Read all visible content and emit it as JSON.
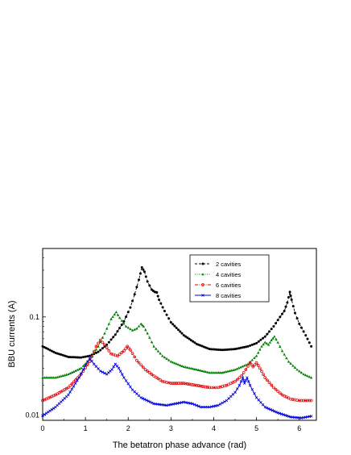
{
  "chart_data": {
    "type": "line",
    "title": "",
    "xlabel": "The betatron phase advance (rad)",
    "ylabel": "BBU currents (A)",
    "xlim": [
      0,
      6.4
    ],
    "ylim": [
      0.0088,
      0.5
    ],
    "yscale": "log",
    "x_ticks": [
      0,
      1,
      2,
      3,
      4,
      5,
      6
    ],
    "x_tick_labels": [
      "0",
      "1",
      "2",
      "3",
      "4",
      "5",
      "6"
    ],
    "y_ticks": [
      0.01,
      0.1
    ],
    "y_tick_labels": [
      "0.01",
      "0.1"
    ],
    "grid": false,
    "legend_position": "top-right",
    "series": [
      {
        "name": "2 cavities",
        "color": "#000000",
        "marker": "circle",
        "line_style": "dashed",
        "points": [
          [
            0,
            0.05
          ],
          [
            0.3,
            0.043
          ],
          [
            0.6,
            0.039
          ],
          [
            0.9,
            0.0385
          ],
          [
            1.1,
            0.04
          ],
          [
            1.3,
            0.044
          ],
          [
            1.5,
            0.052
          ],
          [
            1.7,
            0.066
          ],
          [
            1.9,
            0.09
          ],
          [
            2.05,
            0.125
          ],
          [
            2.15,
            0.17
          ],
          [
            2.25,
            0.24
          ],
          [
            2.32,
            0.32
          ],
          [
            2.38,
            0.29
          ],
          [
            2.45,
            0.23
          ],
          [
            2.55,
            0.19
          ],
          [
            2.62,
            0.18
          ],
          [
            2.67,
            0.178
          ],
          [
            2.72,
            0.15
          ],
          [
            2.85,
            0.115
          ],
          [
            3.0,
            0.088
          ],
          [
            3.3,
            0.065
          ],
          [
            3.6,
            0.053
          ],
          [
            3.9,
            0.047
          ],
          [
            4.2,
            0.046
          ],
          [
            4.5,
            0.047
          ],
          [
            4.8,
            0.05
          ],
          [
            5.0,
            0.054
          ],
          [
            5.2,
            0.063
          ],
          [
            5.4,
            0.08
          ],
          [
            5.55,
            0.1
          ],
          [
            5.65,
            0.115
          ],
          [
            5.72,
            0.14
          ],
          [
            5.78,
            0.18
          ],
          [
            5.82,
            0.15
          ],
          [
            5.9,
            0.11
          ],
          [
            6.0,
            0.085
          ],
          [
            6.15,
            0.065
          ],
          [
            6.28,
            0.05
          ]
        ]
      },
      {
        "name": "4 cavities",
        "color": "#008000",
        "marker": "triangle",
        "line_style": "dotted",
        "points": [
          [
            0,
            0.024
          ],
          [
            0.3,
            0.024
          ],
          [
            0.6,
            0.026
          ],
          [
            0.9,
            0.03
          ],
          [
            1.1,
            0.037
          ],
          [
            1.3,
            0.05
          ],
          [
            1.45,
            0.068
          ],
          [
            1.6,
            0.095
          ],
          [
            1.72,
            0.112
          ],
          [
            1.8,
            0.098
          ],
          [
            1.95,
            0.08
          ],
          [
            2.1,
            0.073
          ],
          [
            2.2,
            0.076
          ],
          [
            2.3,
            0.085
          ],
          [
            2.36,
            0.08
          ],
          [
            2.45,
            0.068
          ],
          [
            2.6,
            0.05
          ],
          [
            2.8,
            0.04
          ],
          [
            3.0,
            0.035
          ],
          [
            3.3,
            0.031
          ],
          [
            3.6,
            0.029
          ],
          [
            3.9,
            0.027
          ],
          [
            4.2,
            0.027
          ],
          [
            4.5,
            0.029
          ],
          [
            4.8,
            0.033
          ],
          [
            5.0,
            0.04
          ],
          [
            5.12,
            0.05
          ],
          [
            5.2,
            0.055
          ],
          [
            5.28,
            0.052
          ],
          [
            5.35,
            0.058
          ],
          [
            5.42,
            0.063
          ],
          [
            5.5,
            0.055
          ],
          [
            5.6,
            0.045
          ],
          [
            5.75,
            0.035
          ],
          [
            5.95,
            0.029
          ],
          [
            6.1,
            0.026
          ],
          [
            6.28,
            0.024
          ]
        ]
      },
      {
        "name": "6 cavities",
        "color": "#e00000",
        "marker": "circle-open",
        "line_style": "dashdot",
        "points": [
          [
            0,
            0.014
          ],
          [
            0.3,
            0.016
          ],
          [
            0.6,
            0.019
          ],
          [
            0.9,
            0.026
          ],
          [
            1.1,
            0.035
          ],
          [
            1.25,
            0.05
          ],
          [
            1.35,
            0.058
          ],
          [
            1.45,
            0.052
          ],
          [
            1.6,
            0.042
          ],
          [
            1.75,
            0.04
          ],
          [
            1.9,
            0.045
          ],
          [
            1.98,
            0.05
          ],
          [
            2.05,
            0.046
          ],
          [
            2.2,
            0.036
          ],
          [
            2.4,
            0.029
          ],
          [
            2.6,
            0.025
          ],
          [
            2.8,
            0.022
          ],
          [
            3.0,
            0.021
          ],
          [
            3.3,
            0.021
          ],
          [
            3.6,
            0.02
          ],
          [
            3.9,
            0.019
          ],
          [
            4.1,
            0.019
          ],
          [
            4.3,
            0.02
          ],
          [
            4.5,
            0.022
          ],
          [
            4.65,
            0.025
          ],
          [
            4.75,
            0.029
          ],
          [
            4.85,
            0.034
          ],
          [
            4.92,
            0.031
          ],
          [
            5.0,
            0.034
          ],
          [
            5.08,
            0.03
          ],
          [
            5.2,
            0.024
          ],
          [
            5.4,
            0.019
          ],
          [
            5.6,
            0.016
          ],
          [
            5.8,
            0.0145
          ],
          [
            6.0,
            0.014
          ],
          [
            6.28,
            0.014
          ]
        ]
      },
      {
        "name": "8 cavities",
        "color": "#0000e0",
        "marker": "cross",
        "line_style": "solid",
        "points": [
          [
            0,
            0.0098
          ],
          [
            0.3,
            0.012
          ],
          [
            0.6,
            0.016
          ],
          [
            0.85,
            0.024
          ],
          [
            1.0,
            0.032
          ],
          [
            1.1,
            0.038
          ],
          [
            1.2,
            0.033
          ],
          [
            1.35,
            0.028
          ],
          [
            1.5,
            0.026
          ],
          [
            1.62,
            0.029
          ],
          [
            1.7,
            0.033
          ],
          [
            1.78,
            0.03
          ],
          [
            1.9,
            0.024
          ],
          [
            2.1,
            0.018
          ],
          [
            2.3,
            0.015
          ],
          [
            2.6,
            0.013
          ],
          [
            2.9,
            0.0125
          ],
          [
            3.1,
            0.013
          ],
          [
            3.3,
            0.0135
          ],
          [
            3.5,
            0.013
          ],
          [
            3.7,
            0.012
          ],
          [
            3.9,
            0.012
          ],
          [
            4.1,
            0.0125
          ],
          [
            4.3,
            0.014
          ],
          [
            4.5,
            0.017
          ],
          [
            4.6,
            0.02
          ],
          [
            4.68,
            0.024
          ],
          [
            4.72,
            0.021
          ],
          [
            4.78,
            0.024
          ],
          [
            4.85,
            0.02
          ],
          [
            5.0,
            0.015
          ],
          [
            5.2,
            0.012
          ],
          [
            5.5,
            0.0105
          ],
          [
            5.8,
            0.0095
          ],
          [
            6.05,
            0.0093
          ],
          [
            6.28,
            0.0097
          ]
        ]
      }
    ]
  }
}
